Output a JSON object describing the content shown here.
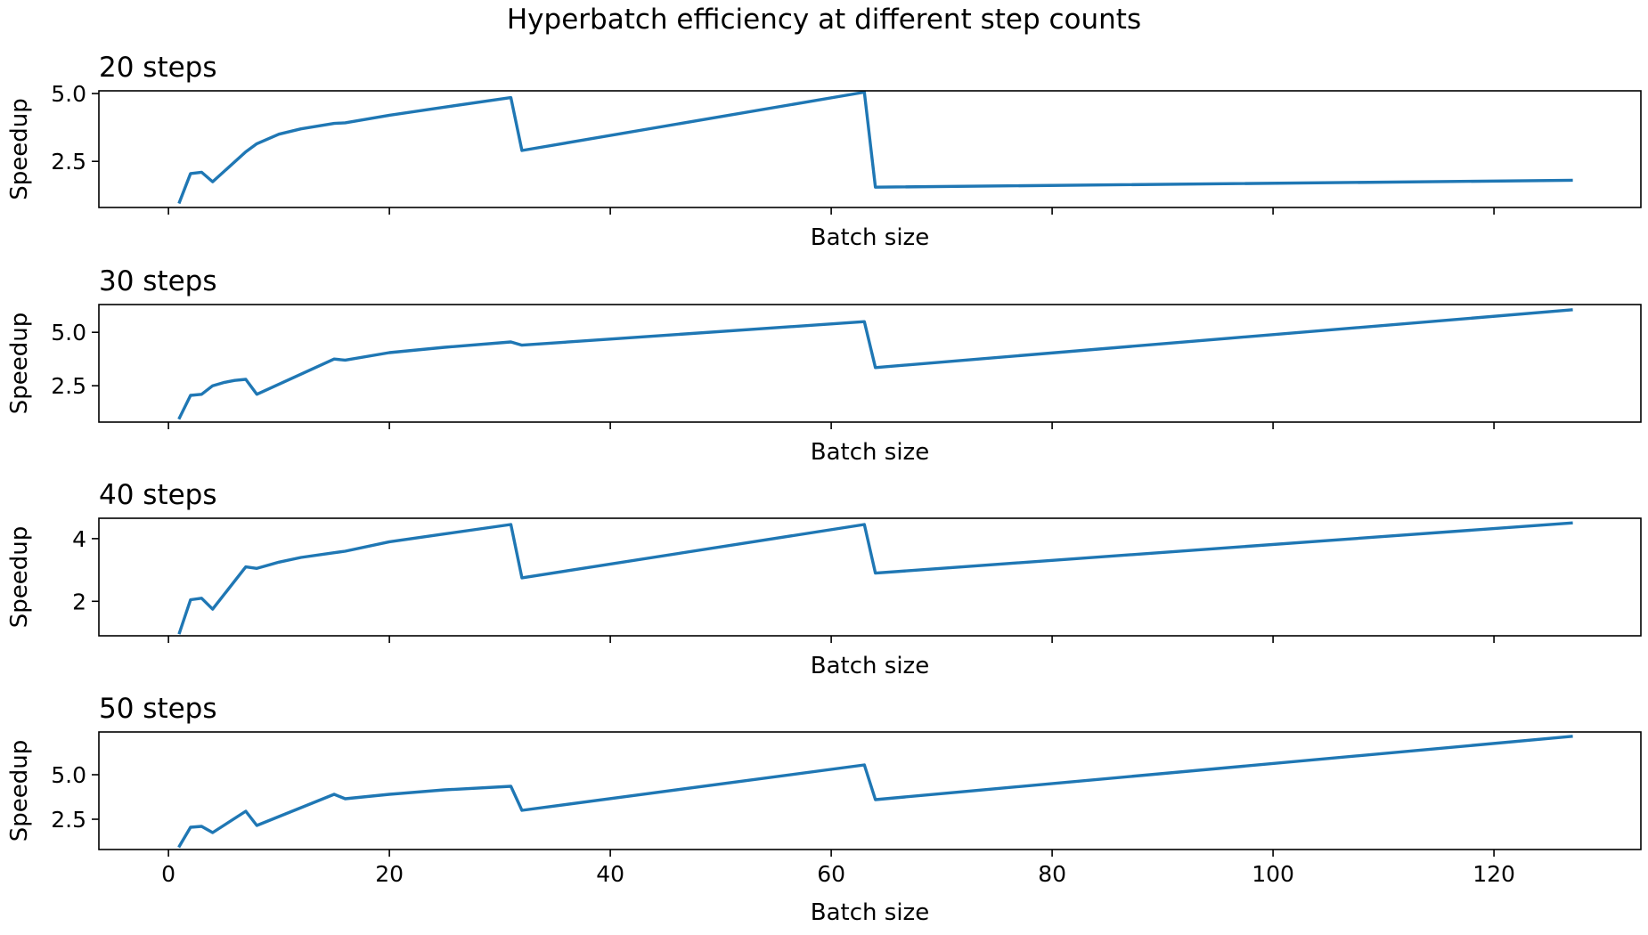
{
  "figure": {
    "title": "Hyperbatch efficiency at different step counts"
  },
  "chart_data": [
    {
      "type": "line",
      "title": "20 steps",
      "xlabel": "Batch size",
      "ylabel": "Speedup",
      "xlim": [
        -6.3,
        133.3
      ],
      "ylim": [
        0.8,
        5.1
      ],
      "xticks": [
        0,
        20,
        40,
        60,
        80,
        100,
        120
      ],
      "show_xticklabels": false,
      "yticks": [
        2.5,
        5.0
      ],
      "ytick_labels": [
        "2.5",
        "5.0"
      ],
      "color": "#1f77b4",
      "grid": false,
      "x": [
        1,
        2,
        3,
        4,
        7,
        8,
        10,
        12,
        15,
        16,
        20,
        25,
        31,
        32,
        63,
        64,
        127
      ],
      "y": [
        1.0,
        2.05,
        2.1,
        1.75,
        2.85,
        3.15,
        3.5,
        3.7,
        3.9,
        3.92,
        4.2,
        4.5,
        4.85,
        2.9,
        5.05,
        1.55,
        1.8
      ]
    },
    {
      "type": "line",
      "title": "30 steps",
      "xlabel": "Batch size",
      "ylabel": "Speedup",
      "xlim": [
        -6.3,
        133.3
      ],
      "ylim": [
        0.8,
        6.3
      ],
      "xticks": [
        0,
        20,
        40,
        60,
        80,
        100,
        120
      ],
      "show_xticklabels": false,
      "yticks": [
        2.5,
        5.0
      ],
      "ytick_labels": [
        "2.5",
        "5.0"
      ],
      "color": "#1f77b4",
      "grid": false,
      "x": [
        1,
        2,
        3,
        4,
        5,
        6,
        7,
        8,
        15,
        16,
        20,
        25,
        31,
        32,
        63,
        64,
        127
      ],
      "y": [
        1.0,
        2.05,
        2.1,
        2.5,
        2.65,
        2.75,
        2.8,
        2.1,
        3.75,
        3.7,
        4.05,
        4.3,
        4.55,
        4.4,
        5.5,
        3.35,
        6.05
      ]
    },
    {
      "type": "line",
      "title": "40 steps",
      "xlabel": "Batch size",
      "ylabel": "Speedup",
      "xlim": [
        -6.3,
        133.3
      ],
      "ylim": [
        0.9,
        4.65
      ],
      "xticks": [
        0,
        20,
        40,
        60,
        80,
        100,
        120
      ],
      "show_xticklabels": false,
      "yticks": [
        2,
        4
      ],
      "ytick_labels": [
        "2",
        "4"
      ],
      "color": "#1f77b4",
      "grid": false,
      "x": [
        1,
        2,
        3,
        4,
        7,
        8,
        10,
        12,
        15,
        16,
        20,
        25,
        31,
        32,
        63,
        64,
        127
      ],
      "y": [
        1.0,
        2.05,
        2.1,
        1.75,
        3.1,
        3.05,
        3.25,
        3.4,
        3.55,
        3.6,
        3.9,
        4.15,
        4.45,
        2.75,
        4.45,
        2.9,
        4.5
      ]
    },
    {
      "type": "line",
      "title": "50 steps",
      "xlabel": "Batch size",
      "ylabel": "Speedup",
      "xlim": [
        -6.3,
        133.3
      ],
      "ylim": [
        0.8,
        7.4
      ],
      "xticks": [
        0,
        20,
        40,
        60,
        80,
        100,
        120
      ],
      "show_xticklabels": true,
      "xtick_labels": [
        "0",
        "20",
        "40",
        "60",
        "80",
        "100",
        "120"
      ],
      "yticks": [
        2.5,
        5.0
      ],
      "ytick_labels": [
        "2.5",
        "5.0"
      ],
      "color": "#1f77b4",
      "grid": false,
      "x": [
        1,
        2,
        3,
        4,
        7,
        8,
        15,
        16,
        20,
        25,
        31,
        32,
        63,
        64,
        127
      ],
      "y": [
        1.0,
        2.05,
        2.1,
        1.75,
        2.95,
        2.15,
        3.9,
        3.65,
        3.9,
        4.15,
        4.35,
        3.0,
        5.55,
        3.6,
        7.15
      ]
    }
  ]
}
